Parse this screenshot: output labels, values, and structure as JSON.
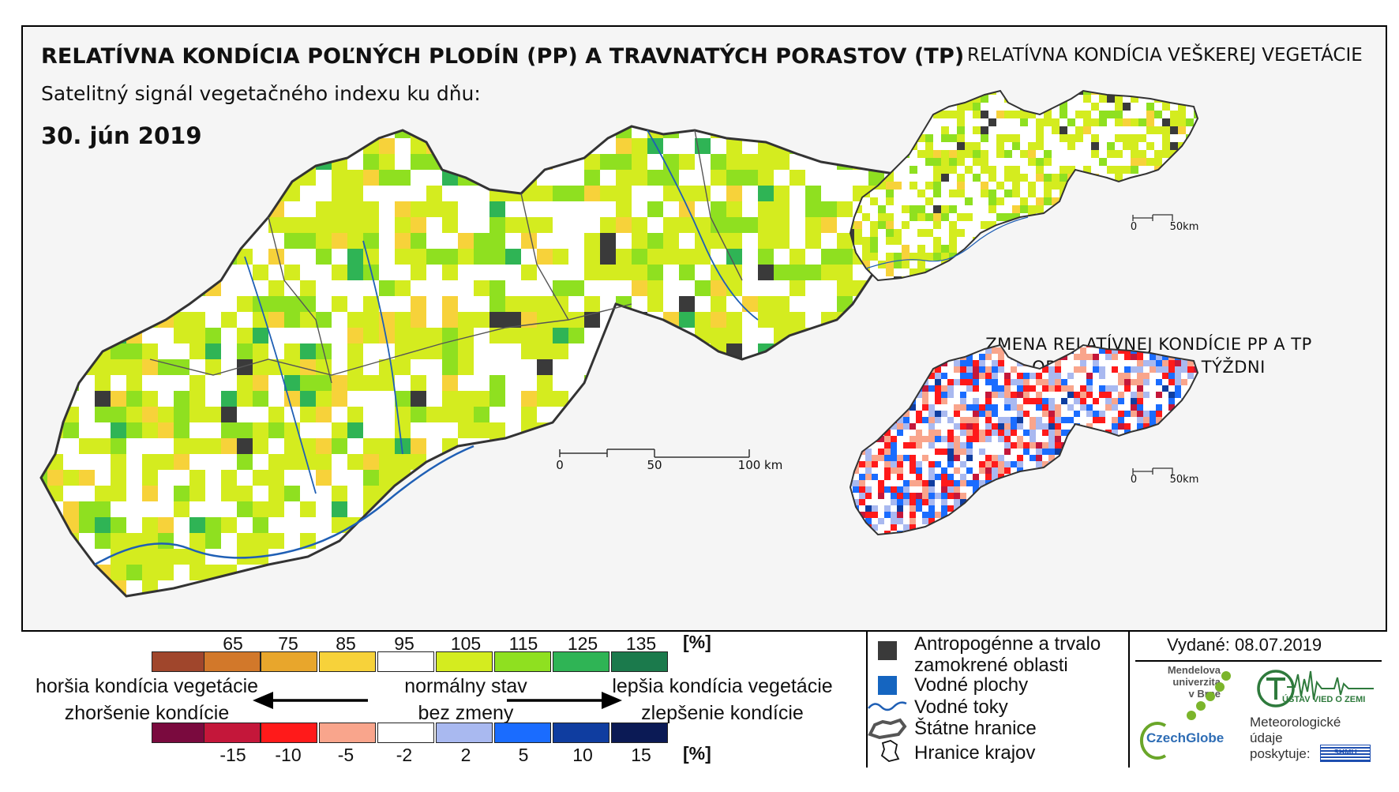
{
  "header": {
    "title": "RELATÍVNA KONDÍCIA POĽNÝCH PLODÍN (PP) A TRAVNATÝCH PORASTOV (TP)",
    "subtitle": "Satelitný signál vegetačného indexu ku dňu:",
    "date": "30. jún 2019"
  },
  "side_maps": {
    "top_title": "RELATÍVNA KONDÍCIA VEŠKEREJ VEGETÁCIE",
    "change_title_line1": "ZMENA RELATÍVNEJ KONDÍCIE PP A TP",
    "change_title_line2": "OPROTI MINULÉMU TÝŽDNI"
  },
  "scalebars": {
    "main": [
      "0",
      "50",
      "100 km"
    ],
    "small_top": [
      "0",
      "50km"
    ],
    "small_bottom": [
      "0",
      "50km"
    ]
  },
  "legend": {
    "condition_scale": {
      "ticks": [
        "65",
        "75",
        "85",
        "95",
        "105",
        "115",
        "125",
        "135"
      ],
      "unit": "[%]",
      "colors": [
        "#a0462c",
        "#d2782a",
        "#e8a62c",
        "#f7d23a",
        "#ffffff",
        "#d4ec1f",
        "#8fe020",
        "#2fb455",
        "#1b7a4c"
      ]
    },
    "change_scale": {
      "ticks": [
        "-15",
        "-10",
        "-5",
        "-2",
        "2",
        "5",
        "10",
        "15"
      ],
      "unit": "[%]",
      "colors": [
        "#7a0a3e",
        "#c4173a",
        "#ff1a1a",
        "#f9a58c",
        "#ffffff",
        "#a9b9f0",
        "#1a6cff",
        "#0f3da0",
        "#0b1a55"
      ]
    },
    "left_text_line1": "horšia kondícia vegetácie",
    "left_text_line2": "zhoršenie kondície",
    "center_text_line1": "normálny stav",
    "center_text_line2": "bez zmeny",
    "right_text_line1": "lepšia kondícia vegetácie",
    "right_text_line2": "zlepšenie kondície",
    "symbols": {
      "anthropogenic_line1": "Antropogénne a trvalo",
      "anthropogenic_line2": "zamokrené oblasti",
      "water_bodies": "Vodné plochy",
      "water_streams": "Vodné toky",
      "state_borders": "Štátne hranice",
      "region_borders": "Hranice krajov"
    },
    "colors": {
      "anthropogenic": "#3a3a3a",
      "water_body": "#1565c0",
      "water_stream": "#1f5fb5"
    }
  },
  "footer": {
    "issued": "Vydané: 08.07.2019",
    "mendel_line1": "Mendelova",
    "mendel_line2": "univerzita",
    "mendel_line3": "v Brně",
    "czechglobe": "CzechGlobe",
    "uvoz_logo": "ÚSTAV VIED O ZEMI",
    "provider_line1": "Meteorologické",
    "provider_line2": "údaje",
    "provider_line3": "poskytuje:",
    "shmu_logo": "SHMÚ"
  }
}
